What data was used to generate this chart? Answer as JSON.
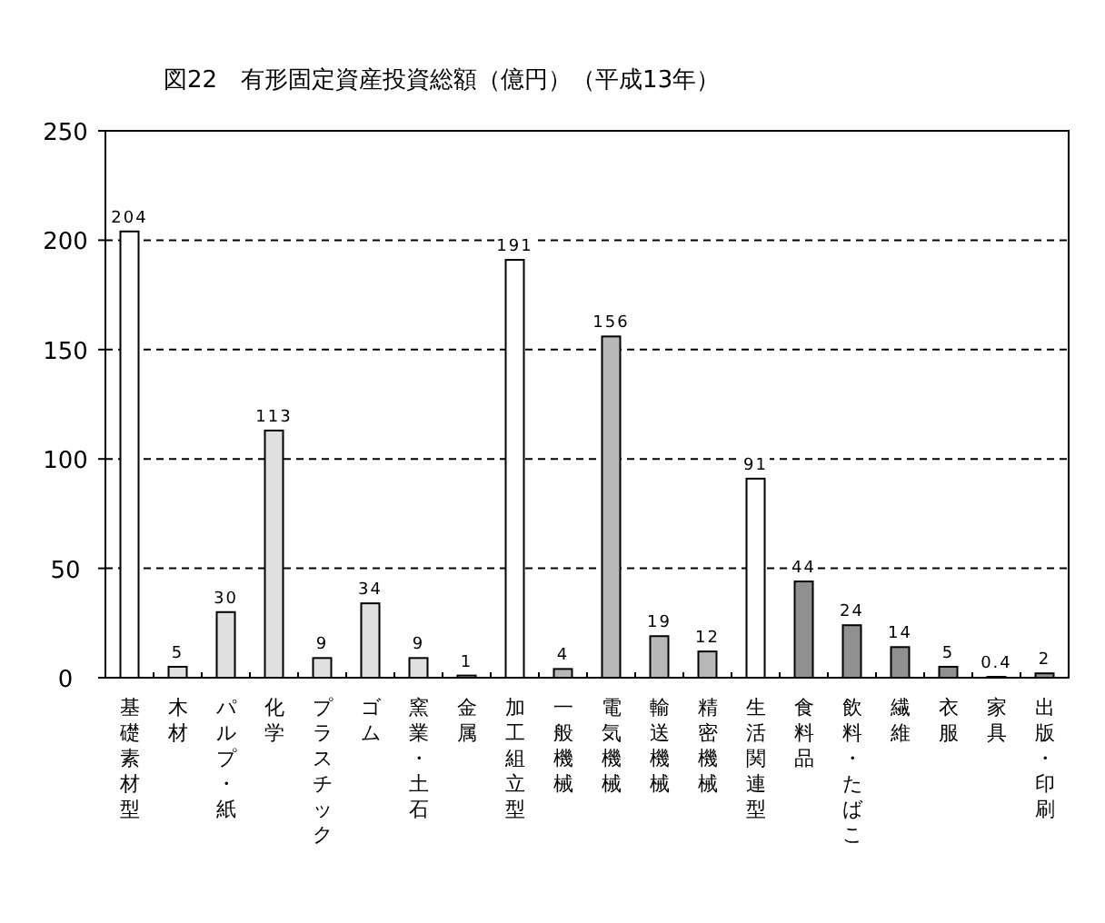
{
  "chart_data": {
    "type": "bar",
    "title": "図22　有形固定資産投資総額（億円）（平成13年）",
    "categories": [
      "基礎素材型",
      "木材",
      "パルプ・紙",
      "化学",
      "プラスチック",
      "ゴム",
      "窯業・土石",
      "金属",
      "加工組立型",
      "一般機械",
      "電気機械",
      "輸送機械",
      "精密機械",
      "生活関連型",
      "食料品",
      "飲料・たばこ",
      "繊維",
      "衣服",
      "家具",
      "出版・印刷"
    ],
    "values": [
      204,
      5,
      30,
      113,
      9,
      34,
      9,
      1,
      191,
      4,
      156,
      19,
      12,
      91,
      44,
      24,
      14,
      5,
      0.4,
      2
    ],
    "colors": [
      "#ffffff",
      "#e0e0e0",
      "#e0e0e0",
      "#e0e0e0",
      "#e0e0e0",
      "#e0e0e0",
      "#e0e0e0",
      "#e0e0e0",
      "#ffffff",
      "#b8b8b8",
      "#b8b8b8",
      "#b8b8b8",
      "#b8b8b8",
      "#ffffff",
      "#909090",
      "#909090",
      "#909090",
      "#909090",
      "#909090",
      "#909090"
    ],
    "ylim": [
      0,
      250
    ],
    "yticks": [
      0,
      50,
      100,
      150,
      200,
      250
    ],
    "grid": "y",
    "data_labels": true
  }
}
